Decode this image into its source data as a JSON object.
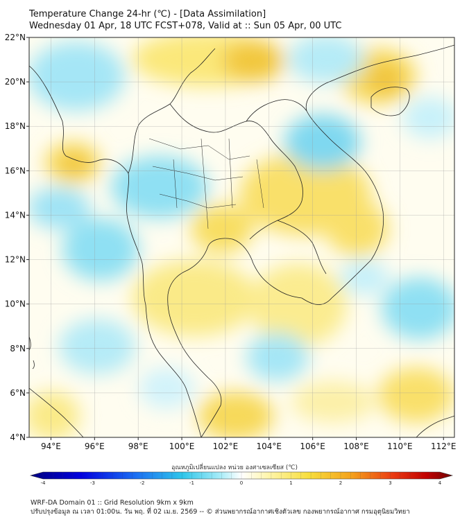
{
  "header": {
    "title_line1": "Temperature Change 24-hr (℃) - [Data Assimilation]",
    "title_line2": "Wednesday 01 Apr, 18 UTC FCST+078, Valid at :: Sun 05 Apr, 00 UTC"
  },
  "map": {
    "lat_labels": [
      "22°N",
      "20°N",
      "18°N",
      "16°N",
      "14°N",
      "12°N",
      "10°N",
      "8°N",
      "6°N",
      "4°N"
    ],
    "lon_labels": [
      "94°E",
      "96°E",
      "98°E",
      "100°E",
      "102°E",
      "104°E",
      "106°E",
      "108°E",
      "110°E",
      "112°E"
    ],
    "lat_range": [
      4,
      22
    ],
    "lon_range": [
      93,
      112.5
    ],
    "grid": true
  },
  "colorbar": {
    "caption": "อุณหภูมิเปลี่ยนแปลง หน่วย องศาเซลเซียส (℃)",
    "tick_labels": [
      "-4",
      "-3",
      "-2",
      "-1",
      "0",
      "1",
      "2",
      "3",
      "4"
    ],
    "range": [
      -4,
      4
    ]
  },
  "footer": {
    "line1": "WRF-DA Domain 01 :: Grid Resolution 9km x 9km",
    "line2": "ปรับปรุงข้อมูล ณ เวลา 01:00น. วัน พฤ. ที่ 02 เม.ย. 2569 -- © ส่วนพยากรณ์อากาศเชิงตัวเลข กองพยากรณ์อากาศ กรมอุตุนิยมวิทยา"
  },
  "colors": {
    "warm_light": "#fff8c0",
    "warm": "#f5df55",
    "warm_strong": "#f0c23a",
    "cool_light": "#d8f3fb",
    "cool": "#8fe0f3",
    "cool_strong": "#5fcde9",
    "neutral": "#ffffff",
    "coastline": "#222222"
  }
}
